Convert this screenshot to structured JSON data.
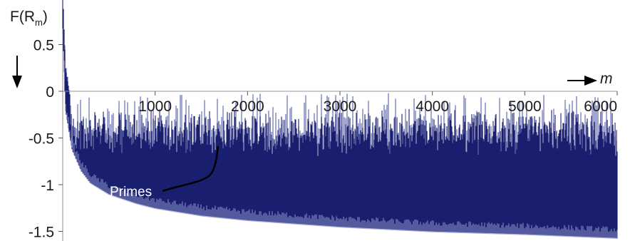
{
  "chart_data": {
    "type": "bar",
    "ylabel_main": "F(R",
    "ylabel_sub": "m",
    "ylabel_close": ")",
    "xlabel": "m",
    "xlim": [
      0,
      6000
    ],
    "ylim": [
      -1.6,
      0.65
    ],
    "x_ticks": [
      {
        "value": 1000,
        "label": "1000"
      },
      {
        "value": 2000,
        "label": "2000"
      },
      {
        "value": 3000,
        "label": "3000"
      },
      {
        "value": 4000,
        "label": "4000"
      },
      {
        "value": 5000,
        "label": "5000"
      },
      {
        "value": 6000,
        "label": "6000"
      }
    ],
    "y_ticks": [
      {
        "value": 0.5,
        "label": "0.5"
      },
      {
        "value": 0,
        "label": "0"
      },
      {
        "value": -0.5,
        "label": "-0.5"
      },
      {
        "value": -1,
        "label": "-1"
      },
      {
        "value": -1.5,
        "label": "-1.5"
      }
    ],
    "annotation": {
      "text": "Primes",
      "m": 1700,
      "value": -0.6
    },
    "series": [
      {
        "lower_envelope": [
          {
            "m": 1,
            "value": 0.62
          },
          {
            "m": 30,
            "value": -0.2
          },
          {
            "m": 100,
            "value": -0.62
          },
          {
            "m": 200,
            "value": -0.85
          },
          {
            "m": 300,
            "value": -0.98
          },
          {
            "m": 500,
            "value": -1.1
          },
          {
            "m": 800,
            "value": -1.2
          },
          {
            "m": 1000,
            "value": -1.25
          },
          {
            "m": 1500,
            "value": -1.33
          },
          {
            "m": 2000,
            "value": -1.38
          },
          {
            "m": 3000,
            "value": -1.45
          },
          {
            "m": 4000,
            "value": -1.5
          },
          {
            "m": 5000,
            "value": -1.53
          },
          {
            "m": 6000,
            "value": -1.57
          }
        ],
        "dense_upper_approx": -0.35,
        "spike_max_approx": -0.02,
        "color": "#1a1f6e",
        "light_color": "#7b82bd"
      }
    ],
    "grid": false
  }
}
